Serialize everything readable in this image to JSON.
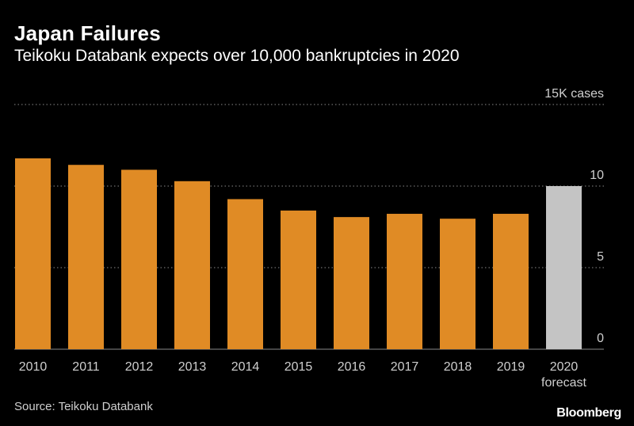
{
  "chart_data": {
    "type": "bar",
    "title": "Japan Failures",
    "subtitle": "Teikoku Databank expects over 10,000 bankruptcies in 2020",
    "categories": [
      "2010",
      "2011",
      "2012",
      "2013",
      "2014",
      "2015",
      "2016",
      "2017",
      "2018",
      "2019",
      "2020"
    ],
    "category_sublabels": [
      "",
      "",
      "",
      "",
      "",
      "",
      "",
      "",
      "",
      "",
      "forecast"
    ],
    "values": [
      11.7,
      11.3,
      11.0,
      10.3,
      9.2,
      8.5,
      8.1,
      8.3,
      8.0,
      8.3,
      10.0
    ],
    "unit": "thousand cases",
    "ylim": [
      0,
      15
    ],
    "yticks": [
      {
        "value": 0,
        "label": "0"
      },
      {
        "value": 5,
        "label": "5"
      },
      {
        "value": 10,
        "label": "10"
      },
      {
        "value": 15,
        "label": "15K cases"
      }
    ],
    "colors": {
      "actual": "#e08b25",
      "forecast": "#c4c4c4",
      "grid": "#8a8a8a",
      "axis_text": "#cfcfcf"
    },
    "xlabel": "",
    "ylabel": ""
  },
  "footer": {
    "source": "Source: Teikoku Databank",
    "brand": "Bloomberg"
  }
}
